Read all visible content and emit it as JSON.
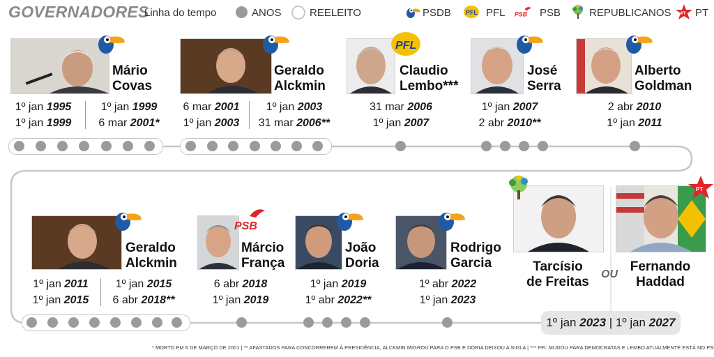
{
  "header": {
    "title": "GOVERNADORES",
    "timeline_label": "Linha do tempo",
    "anos_label": "ANOS",
    "reeleito_label": "REELEITO"
  },
  "legend": [
    {
      "party": "PSDB",
      "icon": "toucan-icon",
      "color": "#1f5aa6"
    },
    {
      "party": "PFL",
      "icon": "pfl-logo",
      "color": "#f2c200"
    },
    {
      "party": "PSB",
      "icon": "psb-dove-logo",
      "color": "#e0262b"
    },
    {
      "party": "REPUBLICANOS",
      "icon": "republicanos-tree-logo",
      "color": "#5aa84a"
    },
    {
      "party": "PT",
      "icon": "pt-star-logo",
      "color": "#e0262b"
    }
  ],
  "governors": [
    {
      "first": "Mário",
      "last": "Covas",
      "party": "PSDB",
      "terms": [
        {
          "l1a": "1º jan ",
          "l1b": "1995",
          "l2a": "1º jan ",
          "l2b": "1999"
        },
        {
          "l1a": "1º jan ",
          "l1b": "1999",
          "l2a": "6 mar ",
          "l2b": "2001*"
        }
      ]
    },
    {
      "first": "Geraldo",
      "last": "Alckmin",
      "party": "PSDB",
      "terms": [
        {
          "l1a": "6 mar ",
          "l1b": "2001",
          "l2a": "1º jan ",
          "l2b": "2003"
        },
        {
          "l1a": "1º jan ",
          "l1b": "2003",
          "l2a": "31 mar ",
          "l2b": "2006**"
        }
      ]
    },
    {
      "first": "Claudio",
      "last": "Lembo***",
      "party": "PFL",
      "terms": [
        {
          "l1a": "31 mar ",
          "l1b": "2006",
          "l2a": "1º jan ",
          "l2b": "2007"
        }
      ]
    },
    {
      "first": "José",
      "last": "Serra",
      "party": "PSDB",
      "terms": [
        {
          "l1a": "1º jan ",
          "l1b": "2007",
          "l2a": "2 abr ",
          "l2b": "2010**"
        }
      ]
    },
    {
      "first": "Alberto",
      "last": "Goldman",
      "party": "PSDB",
      "terms": [
        {
          "l1a": "2 abr ",
          "l1b": "2010",
          "l2a": "1º jan ",
          "l2b": "2011"
        }
      ]
    },
    {
      "first": "Geraldo",
      "last": "Alckmin",
      "party": "PSDB",
      "terms": [
        {
          "l1a": "1º jan ",
          "l1b": "2011",
          "l2a": "1º jan ",
          "l2b": "2015"
        },
        {
          "l1a": "1º jan ",
          "l1b": "2015",
          "l2a": "6 abr ",
          "l2b": "2018**"
        }
      ]
    },
    {
      "first": "Márcio",
      "last": "França",
      "party": "PSB",
      "terms": [
        {
          "l1a": "6 abr ",
          "l1b": "2018",
          "l2a": "1º jan ",
          "l2b": "2019"
        }
      ]
    },
    {
      "first": "João",
      "last": "Doria",
      "party": "PSDB",
      "terms": [
        {
          "l1a": "1º jan ",
          "l1b": "2019",
          "l2a": "1º abr ",
          "l2b": "2022**"
        }
      ]
    },
    {
      "first": "Rodrigo",
      "last": "Garcia",
      "party": "PSDB",
      "terms": [
        {
          "l1a": "1º abr ",
          "l1b": "2022",
          "l2a": "1º jan ",
          "l2b": "2023"
        }
      ]
    },
    {
      "first": "Tarcísio",
      "last": "de Freitas",
      "party": "REPUBLICANOS"
    },
    {
      "first": "Fernando",
      "last": "Haddad",
      "party": "PT"
    }
  ],
  "ou_label": "OU",
  "final_term": {
    "a": "1º jan ",
    "b": "2023",
    "sep": " | ",
    "c": "1º jan ",
    "d": "2027"
  },
  "footnote": "* MORTO EM 6 DE MARÇO DE 2001 | ** AFASTADOS PARA CONCORREREM À PRESIDÊNCIA, ALCKMIN MIGROU PARA O PSB E DORIA DEIXOU A SIGLA | *** PFL MUDOU PARA DEMOCRATAS E LEMBO ATUALMENTE ESTÁ NO PSD"
}
